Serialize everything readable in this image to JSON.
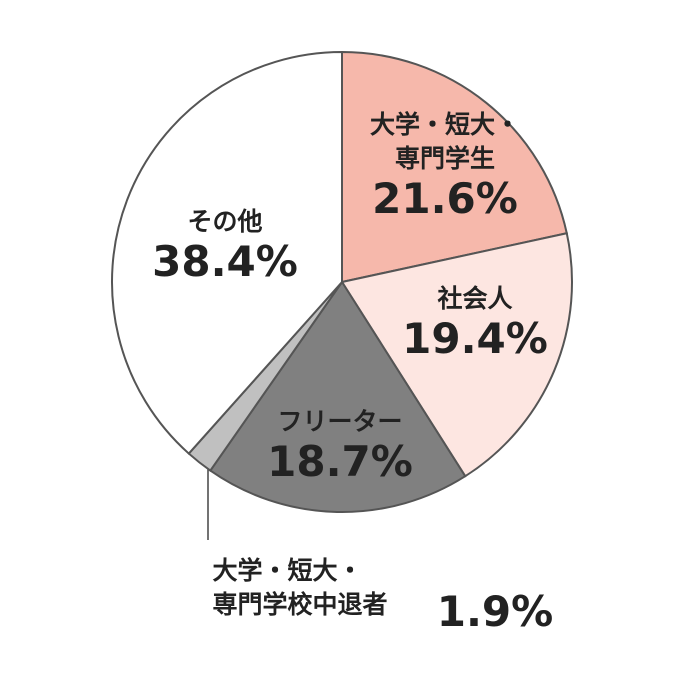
{
  "chart_data": {
    "type": "pie",
    "categories": [
      "大学・短大・\n専門学生",
      "社会人",
      "フリーター",
      "大学・短大・\n専門学校中退者",
      "その他"
    ],
    "values": [
      21.6,
      19.4,
      18.7,
      1.9,
      38.4
    ],
    "value_labels": [
      "21.6%",
      "19.4%",
      "18.7%",
      "1.9%",
      "38.4%"
    ],
    "colors": [
      "#f6b8ab",
      "#fde6e1",
      "#808080",
      "#c0c0c0",
      "#ffffff"
    ]
  }
}
